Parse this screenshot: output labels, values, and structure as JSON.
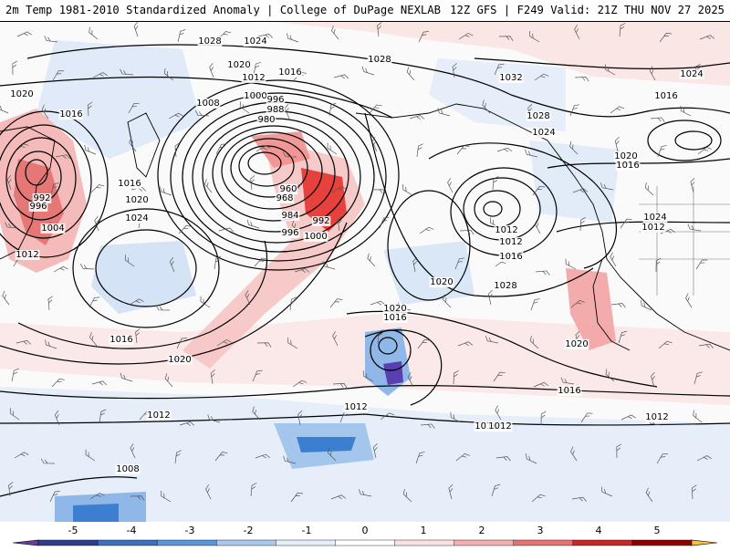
{
  "header": {
    "title_left": "2m Temp 1981-2010 Standardized Anomaly | College of DuPage NEXLAB",
    "title_right": "12Z GFS | F249 Valid: 21Z THU NOV 27 2025"
  },
  "map": {
    "isobar_labels": [
      "1024",
      "1028",
      "1020",
      "1016",
      "1012",
      "1008",
      "1000",
      "996",
      "988",
      "980",
      "1020",
      "1016",
      "1028",
      "1032",
      "1024",
      "1028",
      "1024",
      "1016",
      "1020",
      "1016",
      "992",
      "996",
      "1004",
      "1012",
      "1016",
      "1020",
      "1024",
      "960",
      "968",
      "984",
      "992",
      "1000",
      "996",
      "1020",
      "1016",
      "1012",
      "1012",
      "1016",
      "1020",
      "1028",
      "1024",
      "1012",
      "1016",
      "1020",
      "1020",
      "1016",
      "1012",
      "1016",
      "1012",
      "1012",
      "1012",
      "1008"
    ],
    "anomaly_colors": {
      "strong_positive": "#d7191c",
      "positive": "#f4a3a3",
      "weak_positive": "#f9d5d5",
      "weak_negative": "#d6e4f5",
      "negative": "#9ec3ea",
      "strong_negative": "#3c7fd0",
      "very_negative": "#5a3fae"
    }
  },
  "colorbar": {
    "ticks": [
      "-5",
      "-4",
      "-3",
      "-2",
      "-1",
      "0",
      "1",
      "2",
      "3",
      "4",
      "5"
    ],
    "colors": [
      "#6a3d9a",
      "#2c3f8c",
      "#3b6fc0",
      "#5b95d8",
      "#a8c8ec",
      "#e6eef9",
      "#ffffff",
      "#fbe1e1",
      "#f3b0b0",
      "#e57373",
      "#c62828",
      "#8e0000",
      "#f5c242"
    ]
  }
}
